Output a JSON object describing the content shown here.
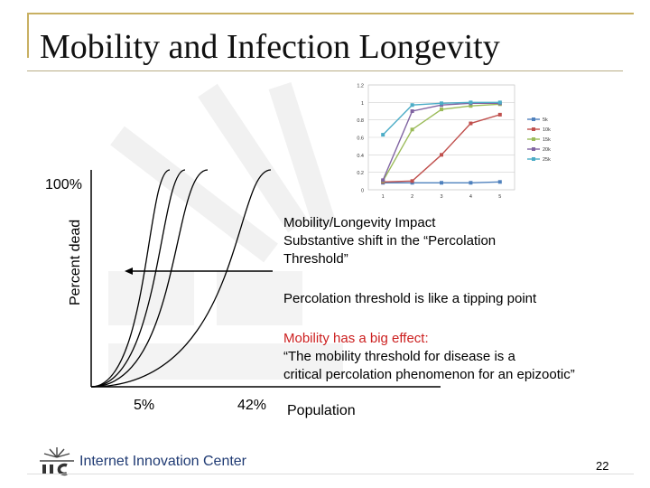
{
  "slide": {
    "title": "Mobility and Infection Longevity",
    "page_number": "22",
    "footer": "Internet Innovation Center"
  },
  "colors": {
    "frame": "#c8b062",
    "red_text": "#cc2020",
    "footer_text": "#1f3a73"
  },
  "chart_data": [
    {
      "type": "line",
      "description_kind": "sketch-curves",
      "ylabel": "Percent dead",
      "xlabel": "Population",
      "y_top_label": "100%",
      "x_markers": [
        "5%",
        "42%"
      ],
      "curve_count": 4
    },
    {
      "type": "line",
      "x": [
        1,
        2,
        3,
        4,
        5
      ],
      "xlim": [
        0.5,
        5.5
      ],
      "ylim": [
        0,
        1.2
      ],
      "yticks": [
        "0",
        "0.2",
        "0.4",
        "0.6",
        "0.8",
        "1",
        "1.2"
      ],
      "xticks": [
        "1",
        "2",
        "3",
        "4",
        "5"
      ],
      "series": [
        {
          "name": "5k",
          "color": "#4f81bd",
          "values": [
            0.08,
            0.08,
            0.08,
            0.08,
            0.09
          ]
        },
        {
          "name": "10k",
          "color": "#c0504d",
          "values": [
            0.09,
            0.1,
            0.4,
            0.76,
            0.86
          ]
        },
        {
          "name": "15k",
          "color": "#9bbb59",
          "values": [
            0.1,
            0.69,
            0.92,
            0.96,
            0.98
          ]
        },
        {
          "name": "20k",
          "color": "#8064a2",
          "values": [
            0.11,
            0.9,
            0.97,
            0.99,
            0.99
          ]
        },
        {
          "name": "25k",
          "color": "#4bacc6",
          "values": [
            0.63,
            0.97,
            0.99,
            1.0,
            1.0
          ]
        }
      ],
      "legend_position": "right"
    }
  ],
  "annotations": {
    "impact_heading": "Mobility/Longevity Impact",
    "impact_line1": "Substantive shift in the “Percolation",
    "impact_line2": "Threshold”",
    "tipping": "Percolation threshold is like a tipping point",
    "mobility_heading": "Mobility has a big effect:",
    "quote_line1": "“The mobility threshold for disease is a",
    "quote_line2": "critical percolation phenomenon for an epizootic”"
  }
}
